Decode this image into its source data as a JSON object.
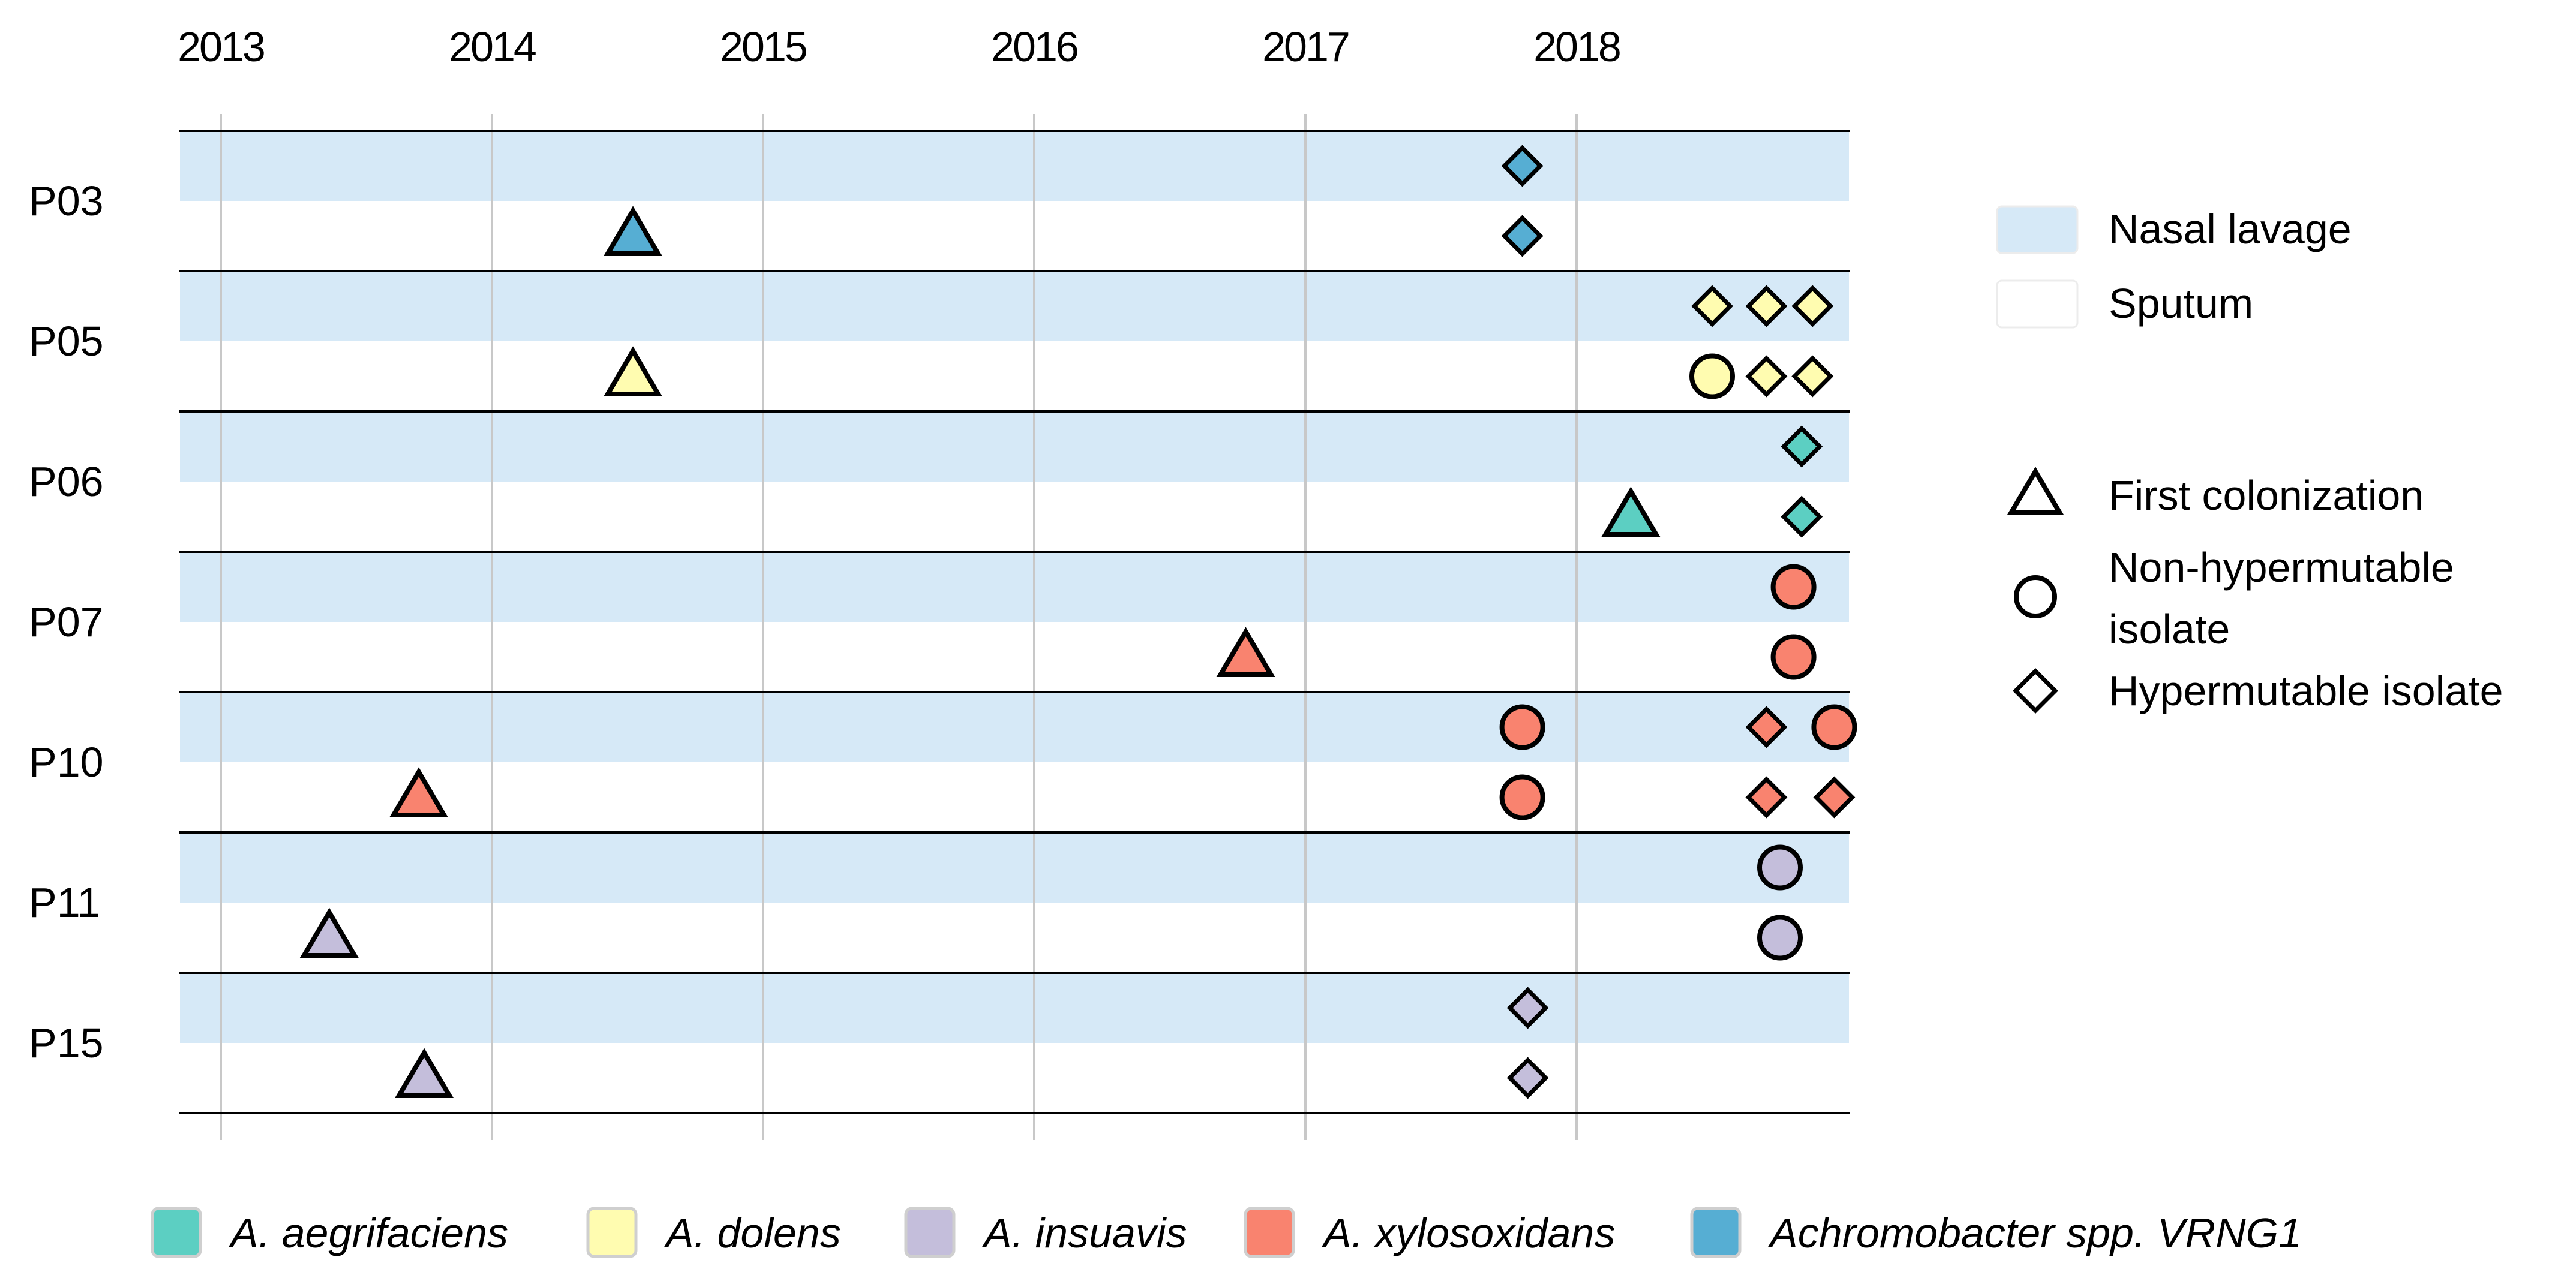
{
  "chart_data": {
    "type": "scatter",
    "x_axis": {
      "ticks": [
        "2013",
        "2014",
        "2015",
        "2016",
        "2017",
        "2018"
      ],
      "range": [
        2012.85,
        2019.0
      ],
      "grid": true
    },
    "patients": [
      "P03",
      "P05",
      "P06",
      "P07",
      "P10",
      "P11",
      "P15"
    ],
    "sample_types": [
      {
        "key": "nasal",
        "label": "Nasal lavage",
        "color": "#d6e9f7"
      },
      {
        "key": "sputum",
        "label": "Sputum",
        "color": "#ffffff"
      }
    ],
    "marker_types": [
      {
        "key": "first",
        "shape": "triangle",
        "label": "First colonization"
      },
      {
        "key": "nonhyper",
        "shape": "circle",
        "label": "Non-hypermutable isolate"
      },
      {
        "key": "hyper",
        "shape": "diamond",
        "label": "Hypermutable isolate"
      }
    ],
    "species": [
      {
        "key": "aeg",
        "label": "A. aegrifaciens",
        "color": "#5ccfc2"
      },
      {
        "key": "dol",
        "label": "A. dolens",
        "color": "#fffcb0"
      },
      {
        "key": "ins",
        "label": "A. insuavis",
        "color": "#c4bedb"
      },
      {
        "key": "xyl",
        "label": "A. xylosoxidans",
        "color": "#f9836f"
      },
      {
        "key": "vrn",
        "label": "Achromobacter spp. VRNG1",
        "color": "#56aed3"
      }
    ],
    "points": [
      {
        "patient": "P03",
        "sample": "nasal",
        "x": 2017.8,
        "marker": "hyper",
        "species": "vrn"
      },
      {
        "patient": "P03",
        "sample": "sputum",
        "x": 2014.52,
        "marker": "first",
        "species": "vrn"
      },
      {
        "patient": "P03",
        "sample": "sputum",
        "x": 2017.8,
        "marker": "hyper",
        "species": "vrn"
      },
      {
        "patient": "P05",
        "sample": "nasal",
        "x": 2018.5,
        "marker": "hyper",
        "species": "dol"
      },
      {
        "patient": "P05",
        "sample": "nasal",
        "x": 2018.7,
        "marker": "hyper",
        "species": "dol"
      },
      {
        "patient": "P05",
        "sample": "nasal",
        "x": 2018.87,
        "marker": "hyper",
        "species": "dol"
      },
      {
        "patient": "P05",
        "sample": "sputum",
        "x": 2014.52,
        "marker": "first",
        "species": "dol"
      },
      {
        "patient": "P05",
        "sample": "sputum",
        "x": 2018.5,
        "marker": "nonhyper",
        "species": "dol"
      },
      {
        "patient": "P05",
        "sample": "sputum",
        "x": 2018.7,
        "marker": "hyper",
        "species": "dol"
      },
      {
        "patient": "P05",
        "sample": "sputum",
        "x": 2018.87,
        "marker": "hyper",
        "species": "dol"
      },
      {
        "patient": "P06",
        "sample": "nasal",
        "x": 2018.83,
        "marker": "hyper",
        "species": "aeg"
      },
      {
        "patient": "P06",
        "sample": "sputum",
        "x": 2018.2,
        "marker": "first",
        "species": "aeg"
      },
      {
        "patient": "P06",
        "sample": "sputum",
        "x": 2018.83,
        "marker": "hyper",
        "species": "aeg"
      },
      {
        "patient": "P07",
        "sample": "nasal",
        "x": 2018.8,
        "marker": "nonhyper",
        "species": "xyl"
      },
      {
        "patient": "P07",
        "sample": "sputum",
        "x": 2016.78,
        "marker": "first",
        "species": "xyl"
      },
      {
        "patient": "P07",
        "sample": "sputum",
        "x": 2018.8,
        "marker": "nonhyper",
        "species": "xyl"
      },
      {
        "patient": "P10",
        "sample": "nasal",
        "x": 2017.8,
        "marker": "nonhyper",
        "species": "xyl"
      },
      {
        "patient": "P10",
        "sample": "nasal",
        "x": 2018.7,
        "marker": "hyper",
        "species": "xyl"
      },
      {
        "patient": "P10",
        "sample": "nasal",
        "x": 2018.95,
        "marker": "nonhyper",
        "species": "xyl"
      },
      {
        "patient": "P10",
        "sample": "sputum",
        "x": 2013.73,
        "marker": "first",
        "species": "xyl"
      },
      {
        "patient": "P10",
        "sample": "sputum",
        "x": 2017.8,
        "marker": "nonhyper",
        "species": "xyl"
      },
      {
        "patient": "P10",
        "sample": "sputum",
        "x": 2018.7,
        "marker": "hyper",
        "species": "xyl"
      },
      {
        "patient": "P10",
        "sample": "sputum",
        "x": 2018.95,
        "marker": "hyper",
        "species": "xyl"
      },
      {
        "patient": "P11",
        "sample": "nasal",
        "x": 2018.75,
        "marker": "nonhyper",
        "species": "ins"
      },
      {
        "patient": "P11",
        "sample": "sputum",
        "x": 2013.4,
        "marker": "first",
        "species": "ins"
      },
      {
        "patient": "P11",
        "sample": "sputum",
        "x": 2018.75,
        "marker": "nonhyper",
        "species": "ins"
      },
      {
        "patient": "P15",
        "sample": "nasal",
        "x": 2017.82,
        "marker": "hyper",
        "species": "ins"
      },
      {
        "patient": "P15",
        "sample": "sputum",
        "x": 2013.75,
        "marker": "first",
        "species": "ins"
      },
      {
        "patient": "P15",
        "sample": "sputum",
        "x": 2017.82,
        "marker": "hyper",
        "species": "ins"
      }
    ]
  }
}
